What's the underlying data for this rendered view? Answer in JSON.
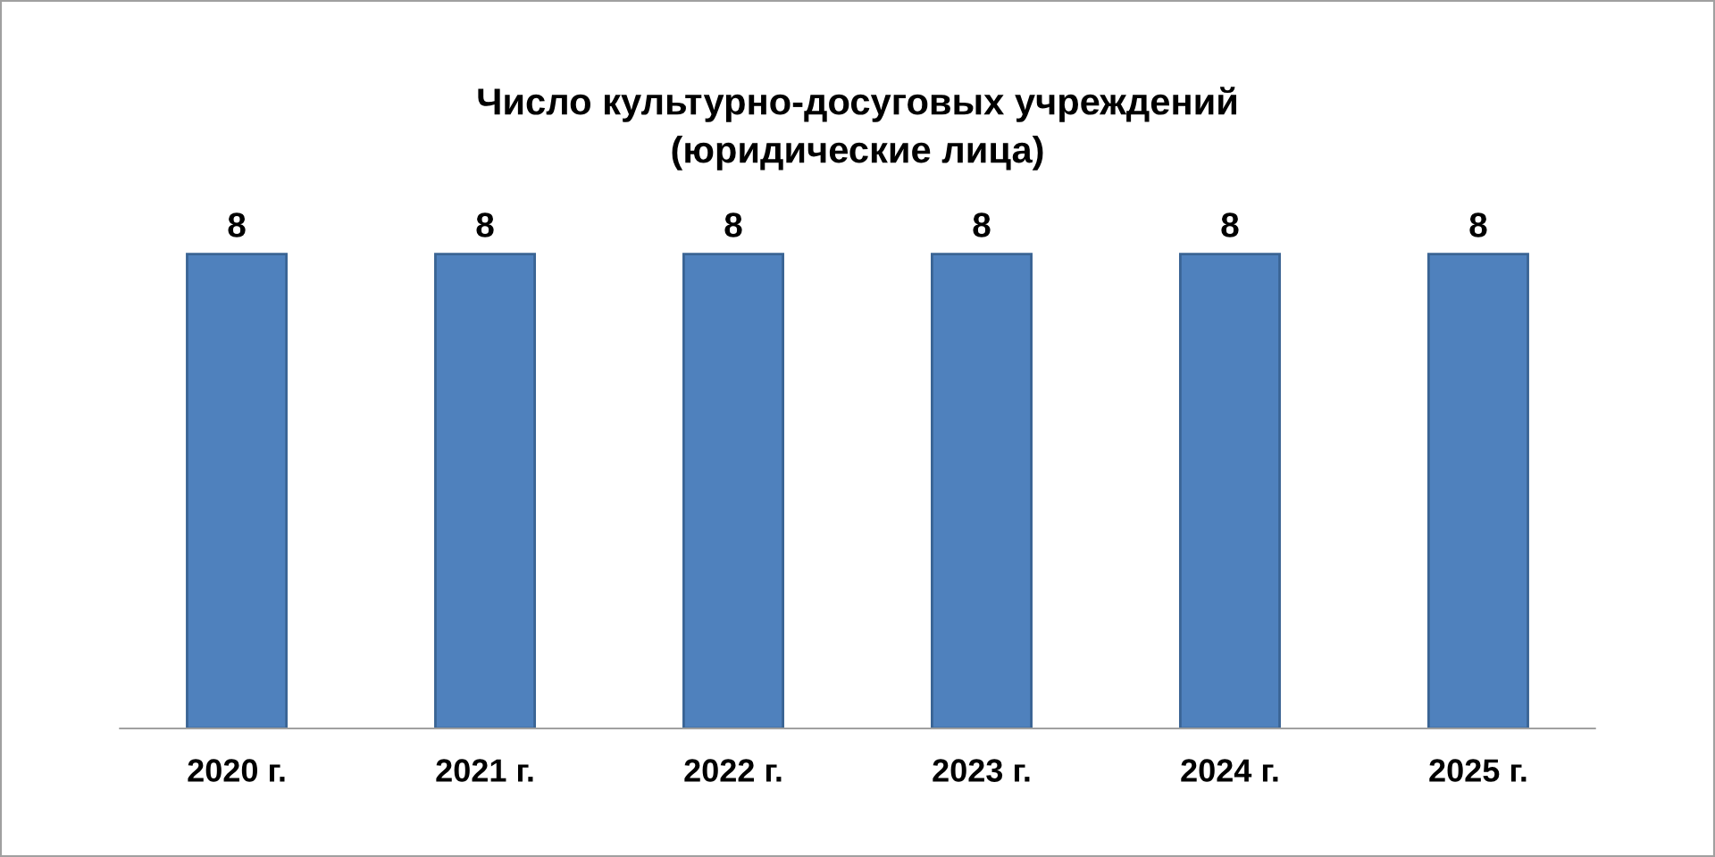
{
  "chart_data": {
    "type": "bar",
    "title": "Число культурно-досуговых учреждений\n(юридические лица)",
    "categories": [
      "2020 г.",
      "2021 г.",
      "2022 г.",
      "2023 г.",
      "2024 г.",
      "2025 г."
    ],
    "values": [
      8,
      8,
      8,
      8,
      8,
      8
    ],
    "color": "#4f81bd",
    "data_labels": true,
    "grid": false,
    "legend": false
  }
}
